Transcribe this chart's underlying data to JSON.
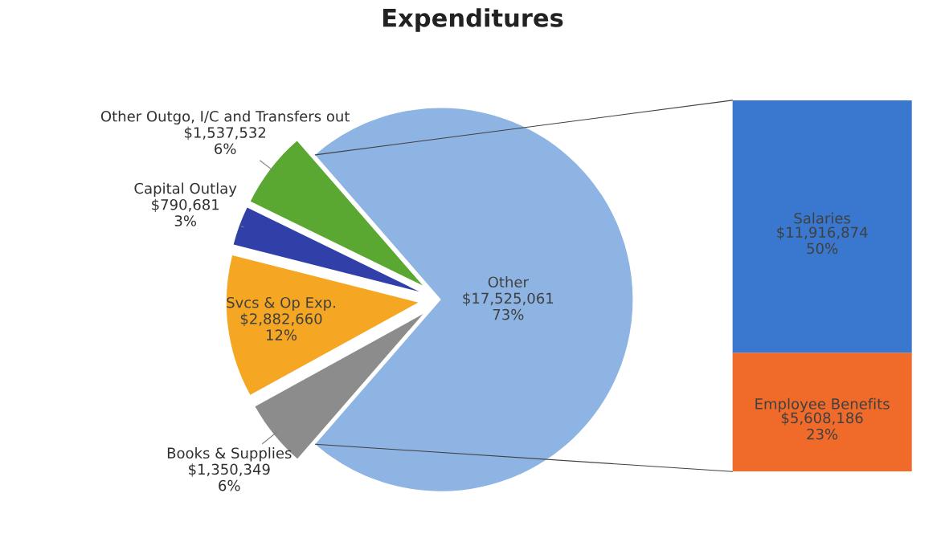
{
  "chart_data": [
    {
      "type": "pie",
      "title": "Expenditures",
      "categories": [
        "Other",
        "Other Outgo, I/C and Transfers out",
        "Capital Outlay",
        "Svcs & Op Exp.",
        "Books & Supplies"
      ],
      "values": [
        17525061,
        1537532,
        790681,
        2882660,
        1350349
      ],
      "colors": [
        "#8db4e2",
        "#5aa832",
        "#3040a8",
        "#f5a623",
        "#8c8c8c"
      ],
      "value_labels": [
        "$17,525,061\n73%",
        "$1,537,532\n6%",
        "$790,681\n3%",
        "$2,882,660\n12%",
        "$1,350,349\n6%"
      ]
    },
    {
      "type": "bar",
      "stacked": true,
      "categories": [
        null
      ],
      "tick_labels": false,
      "series": [
        {
          "name": "Employee Benefits",
          "color": "#f06a2a",
          "values": [
            5608186
          ],
          "value_labels": [
            "$5,608,186\n23%"
          ]
        },
        {
          "name": "Salaries",
          "color": "#3a78d0",
          "values": [
            11916874
          ],
          "value_labels": [
            "$11,916,874\n50%"
          ]
        }
      ]
    }
  ]
}
